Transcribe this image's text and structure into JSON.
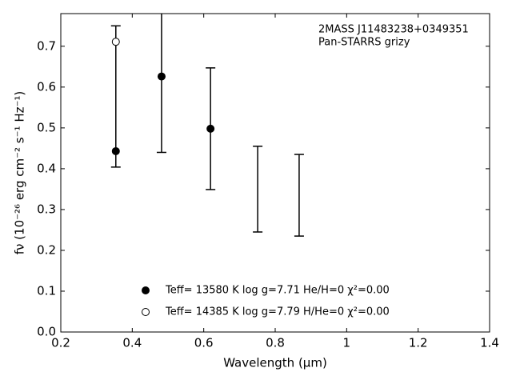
{
  "chart_data": {
    "type": "errorbar",
    "xlabel": "Wavelength (μm)",
    "ylabel": "fν (10⁻²⁶ erg cm⁻² s⁻¹ Hz⁻¹)",
    "annotations": [
      "2MASS J11483238+0349351",
      "Pan-STARRS grizy"
    ],
    "xlim": [
      0.2,
      1.4
    ],
    "xticks": [
      0.2,
      0.4,
      0.6,
      0.8,
      1.0,
      1.2,
      1.4
    ],
    "ylim": [
      0,
      0.78
    ],
    "yticks": [
      {
        "value": 0,
        "label": "0.0"
      },
      0.1,
      0.2,
      0.3,
      0.4,
      0.5,
      0.6,
      0.7
    ],
    "errorbars": {
      "color": "#000000",
      "x": [
        0.354,
        0.482,
        0.619,
        0.751,
        0.867
      ],
      "values": [
        0.577,
        0.63,
        0.498,
        0.35,
        0.335
      ],
      "errors": [
        0.173,
        0.19,
        0.149,
        0.105,
        0.1
      ]
    },
    "series": [
      {
        "name": "Teff= 13580 K  log g=7.71  He/H=0  χ²=0.00",
        "color": "#000000",
        "marker": "filled",
        "x": [
          0.354,
          0.482,
          0.619
        ],
        "values": [
          0.443,
          0.626,
          0.498
        ]
      },
      {
        "name": "Teff= 14385 K  log g=7.79  H/He=0  χ²=0.00",
        "color": "#000000",
        "marker": "open",
        "x": [
          0.354
        ],
        "values": [
          0.711
        ]
      }
    ]
  }
}
